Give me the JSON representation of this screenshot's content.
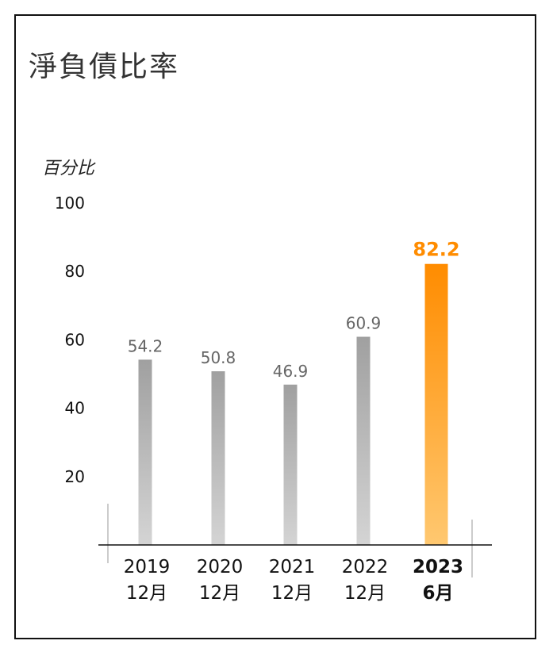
{
  "chart_data": {
    "type": "bar",
    "title": "淨負債比率",
    "ylabel": "百分比",
    "categories": [
      [
        "2019",
        "12月"
      ],
      [
        "2020",
        "12月"
      ],
      [
        "2021",
        "12月"
      ],
      [
        "2022",
        "12月"
      ],
      [
        "2023",
        "6月"
      ]
    ],
    "values": [
      54.2,
      50.8,
      46.9,
      60.9,
      82.2
    ],
    "value_labels": [
      "54.2",
      "50.8",
      "46.9",
      "60.9",
      "82.2"
    ],
    "ylim": [
      0,
      100
    ],
    "yticks": [
      "20",
      "40",
      "60",
      "80",
      "100"
    ],
    "grid": false,
    "highlight_index": 4,
    "colors": {
      "bar": "#a0a0a0",
      "bar_light": "#d4d4d4",
      "highlight": "#ff8c00",
      "highlight_light": "#ffc870",
      "label": "#666666",
      "highlight_label": "#ff8c00"
    }
  }
}
